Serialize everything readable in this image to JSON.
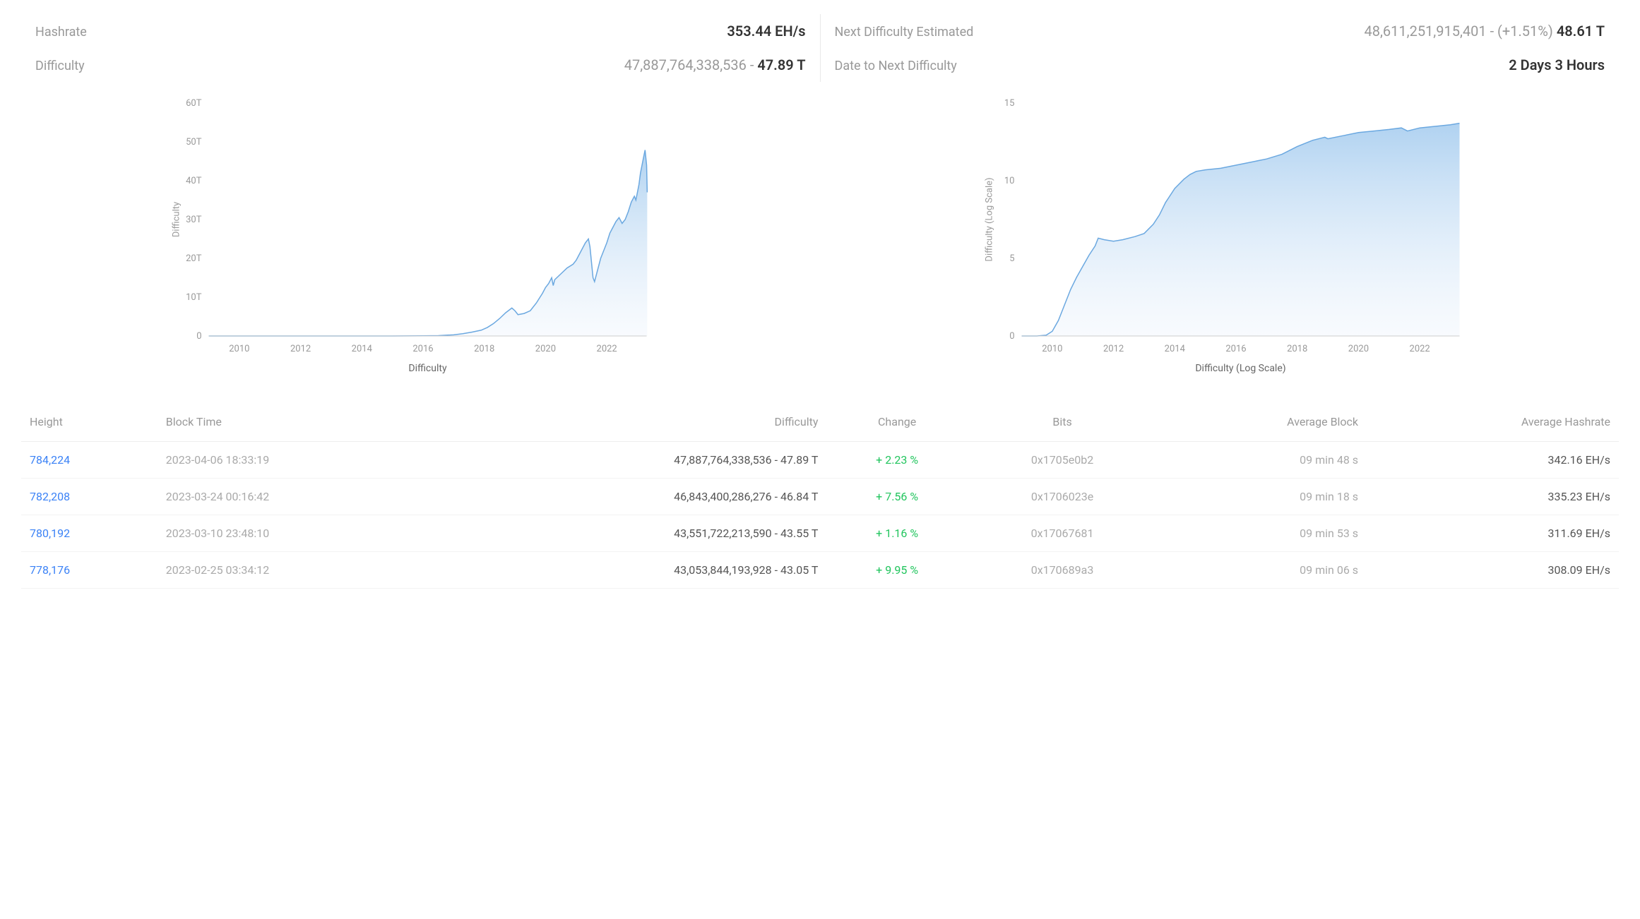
{
  "stats": {
    "left": [
      {
        "label": "Hashrate",
        "value_html": "<span class='bold'>353.44 EH/s</span>"
      },
      {
        "label": "Difficulty",
        "value_html": "<span class='muted'>47,887,764,338,536 - </span><span class='bold'>47.89 T</span>"
      }
    ],
    "right": [
      {
        "label": "Next Difficulty Estimated",
        "value_html": "<span class='muted'>48,611,251,915,401 - (+1.51%) </span><span class='bold'>48.61 T</span>"
      },
      {
        "label": "Date to Next Difficulty",
        "value_html": "<span class='bold'>2 Days 3 Hours</span>"
      }
    ]
  },
  "chart_linear": {
    "ylabel": "Difficulty",
    "xlabel": "Difficulty",
    "y_ticks": [
      0,
      10,
      20,
      30,
      40,
      50,
      60
    ],
    "y_tick_labels": [
      "0",
      "10T",
      "20T",
      "30T",
      "40T",
      "50T",
      "60T"
    ],
    "ymax": 60,
    "x_ticks": [
      2010,
      2012,
      2014,
      2016,
      2018,
      2020,
      2022
    ],
    "xmin": 2009,
    "xmax": 2023.3,
    "line_color": "#6ba8e0",
    "fill_top": "#a7cdef",
    "fill_bottom": "#e8f1fb",
    "points": [
      [
        2009,
        0
      ],
      [
        2010,
        0
      ],
      [
        2011,
        0
      ],
      [
        2012,
        0
      ],
      [
        2013,
        0
      ],
      [
        2014,
        0
      ],
      [
        2015,
        0
      ],
      [
        2016,
        0.05
      ],
      [
        2016.5,
        0.1
      ],
      [
        2017,
        0.3
      ],
      [
        2017.3,
        0.6
      ],
      [
        2017.6,
        1.0
      ],
      [
        2017.9,
        1.5
      ],
      [
        2018.1,
        2.2
      ],
      [
        2018.3,
        3.2
      ],
      [
        2018.5,
        4.5
      ],
      [
        2018.7,
        6.0
      ],
      [
        2018.9,
        7.2
      ],
      [
        2019.0,
        6.5
      ],
      [
        2019.1,
        5.5
      ],
      [
        2019.3,
        5.8
      ],
      [
        2019.5,
        6.5
      ],
      [
        2019.7,
        8.5
      ],
      [
        2019.9,
        11.0
      ],
      [
        2020.0,
        12.5
      ],
      [
        2020.1,
        13.5
      ],
      [
        2020.2,
        15.0
      ],
      [
        2020.25,
        13.0
      ],
      [
        2020.3,
        14.5
      ],
      [
        2020.5,
        16.0
      ],
      [
        2020.7,
        17.5
      ],
      [
        2020.9,
        18.5
      ],
      [
        2021.0,
        19.5
      ],
      [
        2021.1,
        21.0
      ],
      [
        2021.2,
        22.5
      ],
      [
        2021.3,
        24.0
      ],
      [
        2021.4,
        25.0
      ],
      [
        2021.45,
        23.0
      ],
      [
        2021.5,
        19.0
      ],
      [
        2021.55,
        15.0
      ],
      [
        2021.6,
        14.0
      ],
      [
        2021.7,
        17.0
      ],
      [
        2021.8,
        20.0
      ],
      [
        2021.9,
        22.0
      ],
      [
        2022.0,
        24.0
      ],
      [
        2022.1,
        26.5
      ],
      [
        2022.2,
        28.0
      ],
      [
        2022.3,
        29.5
      ],
      [
        2022.4,
        30.5
      ],
      [
        2022.5,
        29.0
      ],
      [
        2022.6,
        30.0
      ],
      [
        2022.7,
        32.0
      ],
      [
        2022.8,
        34.5
      ],
      [
        2022.9,
        36.0
      ],
      [
        2022.95,
        35.0
      ],
      [
        2023.0,
        37.0
      ],
      [
        2023.05,
        39.0
      ],
      [
        2023.1,
        42.0
      ],
      [
        2023.15,
        44.0
      ],
      [
        2023.2,
        46.0
      ],
      [
        2023.25,
        47.9
      ],
      [
        2023.3,
        44.0
      ],
      [
        2023.32,
        37.0
      ]
    ]
  },
  "chart_log": {
    "ylabel": "Difficulty (Log Scale)",
    "xlabel": "Difficulty (Log Scale)",
    "y_ticks": [
      0,
      5,
      10,
      15
    ],
    "y_tick_labels": [
      "0",
      "5",
      "10",
      "15"
    ],
    "ymax": 15,
    "x_ticks": [
      2010,
      2012,
      2014,
      2016,
      2018,
      2020,
      2022
    ],
    "xmin": 2009,
    "xmax": 2023.3,
    "line_color": "#6ba8e0",
    "fill_top": "#a7cdef",
    "fill_bottom": "#e8f1fb",
    "points": [
      [
        2009,
        0
      ],
      [
        2009.5,
        0
      ],
      [
        2009.8,
        0.05
      ],
      [
        2010.0,
        0.3
      ],
      [
        2010.2,
        1.0
      ],
      [
        2010.4,
        2.0
      ],
      [
        2010.6,
        3.0
      ],
      [
        2010.8,
        3.8
      ],
      [
        2011.0,
        4.5
      ],
      [
        2011.2,
        5.2
      ],
      [
        2011.4,
        5.8
      ],
      [
        2011.5,
        6.3
      ],
      [
        2011.7,
        6.2
      ],
      [
        2012.0,
        6.1
      ],
      [
        2012.3,
        6.2
      ],
      [
        2012.7,
        6.4
      ],
      [
        2013.0,
        6.6
      ],
      [
        2013.3,
        7.2
      ],
      [
        2013.5,
        7.8
      ],
      [
        2013.7,
        8.6
      ],
      [
        2014.0,
        9.5
      ],
      [
        2014.3,
        10.1
      ],
      [
        2014.5,
        10.4
      ],
      [
        2014.7,
        10.6
      ],
      [
        2015.0,
        10.7
      ],
      [
        2015.5,
        10.8
      ],
      [
        2016.0,
        11.0
      ],
      [
        2016.5,
        11.2
      ],
      [
        2017.0,
        11.4
      ],
      [
        2017.5,
        11.7
      ],
      [
        2018.0,
        12.2
      ],
      [
        2018.5,
        12.6
      ],
      [
        2018.9,
        12.8
      ],
      [
        2019.0,
        12.7
      ],
      [
        2019.5,
        12.9
      ],
      [
        2020.0,
        13.1
      ],
      [
        2020.5,
        13.2
      ],
      [
        2021.0,
        13.3
      ],
      [
        2021.4,
        13.4
      ],
      [
        2021.6,
        13.2
      ],
      [
        2022.0,
        13.4
      ],
      [
        2022.5,
        13.5
      ],
      [
        2023.0,
        13.6
      ],
      [
        2023.3,
        13.7
      ]
    ]
  },
  "table": {
    "columns": [
      "Height",
      "Block Time",
      "Difficulty",
      "Change",
      "Bits",
      "Average Block",
      "Average Hashrate"
    ],
    "rows": [
      {
        "height": "784,224",
        "time": "2023-04-06 18:33:19",
        "difficulty": "47,887,764,338,536 - 47.89 T",
        "change": "+ 2.23 %",
        "bits": "0x1705e0b2",
        "avg_block": "09 min 48 s",
        "avg_hash": "342.16 EH/s"
      },
      {
        "height": "782,208",
        "time": "2023-03-24 00:16:42",
        "difficulty": "46,843,400,286,276 - 46.84 T",
        "change": "+ 7.56 %",
        "bits": "0x1706023e",
        "avg_block": "09 min 18 s",
        "avg_hash": "335.23 EH/s"
      },
      {
        "height": "780,192",
        "time": "2023-03-10 23:48:10",
        "difficulty": "43,551,722,213,590 - 43.55 T",
        "change": "+ 1.16 %",
        "bits": "0x17067681",
        "avg_block": "09 min 53 s",
        "avg_hash": "311.69 EH/s"
      },
      {
        "height": "778,176",
        "time": "2023-02-25 03:34:12",
        "difficulty": "43,053,844,193,928 - 43.05 T",
        "change": "+ 9.95 %",
        "bits": "0x170689a3",
        "avg_block": "09 min 06 s",
        "avg_hash": "308.09 EH/s"
      }
    ]
  }
}
